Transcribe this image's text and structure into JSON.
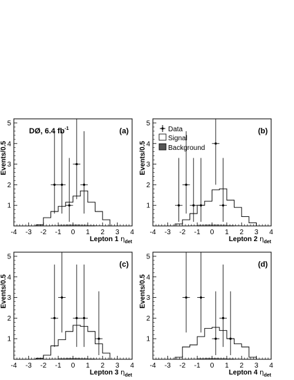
{
  "experiment_label": "DØ, 6.4 fb",
  "experiment_label_sup": "-1",
  "legend": {
    "data": "Data",
    "signal": "Signal",
    "background": "Background"
  },
  "chart_data": [
    {
      "type": "histogram",
      "panel_label": "(a)",
      "xlabel": "Lepton 1",
      "xlabel_symbol": "η",
      "xlabel_sub": "det",
      "ylabel": "Events/0.5",
      "xlim": [
        -4,
        4
      ],
      "ylim": [
        0,
        5.2
      ],
      "xticks": [
        "-4",
        "-3",
        "-2",
        "-1",
        "0",
        "1",
        "2",
        "3",
        "4"
      ],
      "yticks": [
        "1",
        "2",
        "3",
        "4",
        "5"
      ],
      "bin_edges": [
        -4,
        -3.5,
        -3,
        -2.5,
        -2,
        -1.5,
        -1,
        -0.5,
        0,
        0.5,
        1,
        1.5,
        2,
        2.5,
        3,
        3.5,
        4
      ],
      "signal": [
        0,
        0,
        0,
        0.05,
        0.4,
        0.7,
        0.95,
        1.15,
        1.45,
        1.7,
        1.15,
        0.7,
        0.3,
        0,
        0,
        0
      ],
      "background": [
        0,
        0,
        0,
        0,
        0,
        0.03,
        0.05,
        0.06,
        0.06,
        0.05,
        0.04,
        0.03,
        0,
        0,
        0,
        0
      ],
      "data": [
        {
          "x": -1.25,
          "y": 2,
          "yerr_low": 1.4,
          "yerr_high": 2.6
        },
        {
          "x": -0.75,
          "y": 2,
          "yerr_low": 1.4,
          "yerr_high": 2.6
        },
        {
          "x": -0.25,
          "y": 1,
          "yerr_low": 0.8,
          "yerr_high": 2.3
        },
        {
          "x": 0.25,
          "y": 3,
          "yerr_low": 1.7,
          "yerr_high": 2.7
        },
        {
          "x": 0.75,
          "y": 2,
          "yerr_low": 1.4,
          "yerr_high": 2.6
        }
      ]
    },
    {
      "type": "histogram",
      "panel_label": "(b)",
      "xlabel": "Lepton 2",
      "xlabel_symbol": "η",
      "xlabel_sub": "det",
      "ylabel": "Events/0.5",
      "xlim": [
        -4,
        4
      ],
      "ylim": [
        0,
        5.2
      ],
      "xticks": [
        "-4",
        "-3",
        "-2",
        "-1",
        "0",
        "1",
        "2",
        "3",
        "4"
      ],
      "yticks": [
        "1",
        "2",
        "3",
        "4",
        "5"
      ],
      "bin_edges": [
        -4,
        -3.5,
        -3,
        -2.5,
        -2,
        -1.5,
        -1,
        -0.5,
        0,
        0.5,
        1,
        1.5,
        2,
        2.5,
        3,
        3.5,
        4
      ],
      "signal": [
        0,
        0,
        0,
        0.1,
        0.3,
        0.6,
        1.0,
        1.2,
        1.75,
        1.8,
        1.25,
        0.9,
        0.45,
        0.15,
        0,
        0
      ],
      "background": [
        0,
        0,
        0,
        0,
        0,
        0.03,
        0.05,
        0.06,
        0.06,
        0.05,
        0.04,
        0.03,
        0,
        0,
        0,
        0
      ],
      "data": [
        {
          "x": -2.25,
          "y": 1,
          "yerr_low": 0.8,
          "yerr_high": 2.3
        },
        {
          "x": -1.75,
          "y": 2,
          "yerr_low": 1.4,
          "yerr_high": 2.6
        },
        {
          "x": -1.25,
          "y": 1,
          "yerr_low": 0.8,
          "yerr_high": 2.3
        },
        {
          "x": -0.75,
          "y": 1,
          "yerr_low": 0.8,
          "yerr_high": 2.3
        },
        {
          "x": 0.25,
          "y": 4,
          "yerr_low": 2.0,
          "yerr_high": 3.2
        },
        {
          "x": 0.75,
          "y": 1,
          "yerr_low": 0.8,
          "yerr_high": 2.3
        }
      ]
    },
    {
      "type": "histogram",
      "panel_label": "(c)",
      "xlabel": "Lepton 3",
      "xlabel_symbol": "η",
      "xlabel_sub": "det",
      "ylabel": "Events/0.5",
      "xlim": [
        -4,
        4
      ],
      "ylim": [
        0,
        5.2
      ],
      "xticks": [
        "-4",
        "-3",
        "-2",
        "-1",
        "0",
        "1",
        "2",
        "3",
        "4"
      ],
      "yticks": [
        "1",
        "2",
        "3",
        "4",
        "5"
      ],
      "bin_edges": [
        -4,
        -3.5,
        -3,
        -2.5,
        -2,
        -1.5,
        -1,
        -0.5,
        0,
        0.5,
        1,
        1.5,
        2,
        2.5,
        3,
        3.5,
        4
      ],
      "signal": [
        0,
        0,
        0,
        0.05,
        0.2,
        0.65,
        0.95,
        1.35,
        1.65,
        1.6,
        1.35,
        0.75,
        0.3,
        0,
        0,
        0
      ],
      "background": [
        0,
        0,
        0,
        0,
        0,
        0.03,
        0.05,
        0.06,
        0.06,
        0.05,
        0.04,
        0.03,
        0,
        0,
        0,
        0
      ],
      "data": [
        {
          "x": -1.25,
          "y": 2,
          "yerr_low": 1.4,
          "yerr_high": 2.6
        },
        {
          "x": -0.75,
          "y": 3,
          "yerr_low": 1.7,
          "yerr_high": 2.7
        },
        {
          "x": 0.25,
          "y": 2,
          "yerr_low": 1.4,
          "yerr_high": 2.6
        },
        {
          "x": 0.75,
          "y": 2,
          "yerr_low": 1.4,
          "yerr_high": 2.6
        },
        {
          "x": 1.75,
          "y": 1,
          "yerr_low": 0.8,
          "yerr_high": 2.3
        }
      ]
    },
    {
      "type": "histogram",
      "panel_label": "(d)",
      "xlabel": "Lepton 4",
      "xlabel_symbol": "η",
      "xlabel_sub": "det",
      "ylabel": "Events/0.5",
      "xlim": [
        -4,
        4
      ],
      "ylim": [
        0,
        5.2
      ],
      "xticks": [
        "-4",
        "-3",
        "-2",
        "-1",
        "0",
        "1",
        "2",
        "3",
        "4"
      ],
      "yticks": [
        "1",
        "2",
        "3",
        "4",
        "5"
      ],
      "bin_edges": [
        -4,
        -3.5,
        -3,
        -2.5,
        -2,
        -1.5,
        -1,
        -0.5,
        0,
        0.5,
        1,
        1.5,
        2,
        2.5,
        3,
        3.5,
        4
      ],
      "signal": [
        0,
        0,
        0,
        0.1,
        0.6,
        0.7,
        1.1,
        1.5,
        1.55,
        1.4,
        1.0,
        0.75,
        0.6,
        0.1,
        0,
        0
      ],
      "background": [
        0,
        0,
        0,
        0,
        0,
        0.03,
        0.05,
        0.06,
        0.06,
        0.05,
        0.04,
        0.03,
        0,
        0,
        0,
        0
      ],
      "data": [
        {
          "x": -1.75,
          "y": 3,
          "yerr_low": 1.7,
          "yerr_high": 2.7
        },
        {
          "x": -0.75,
          "y": 3,
          "yerr_low": 1.7,
          "yerr_high": 2.7
        },
        {
          "x": 0.25,
          "y": 1,
          "yerr_low": 0.8,
          "yerr_high": 2.3
        },
        {
          "x": 0.75,
          "y": 2,
          "yerr_low": 1.4,
          "yerr_high": 2.6
        },
        {
          "x": 1.25,
          "y": 1,
          "yerr_low": 0.8,
          "yerr_high": 2.3
        }
      ]
    }
  ]
}
